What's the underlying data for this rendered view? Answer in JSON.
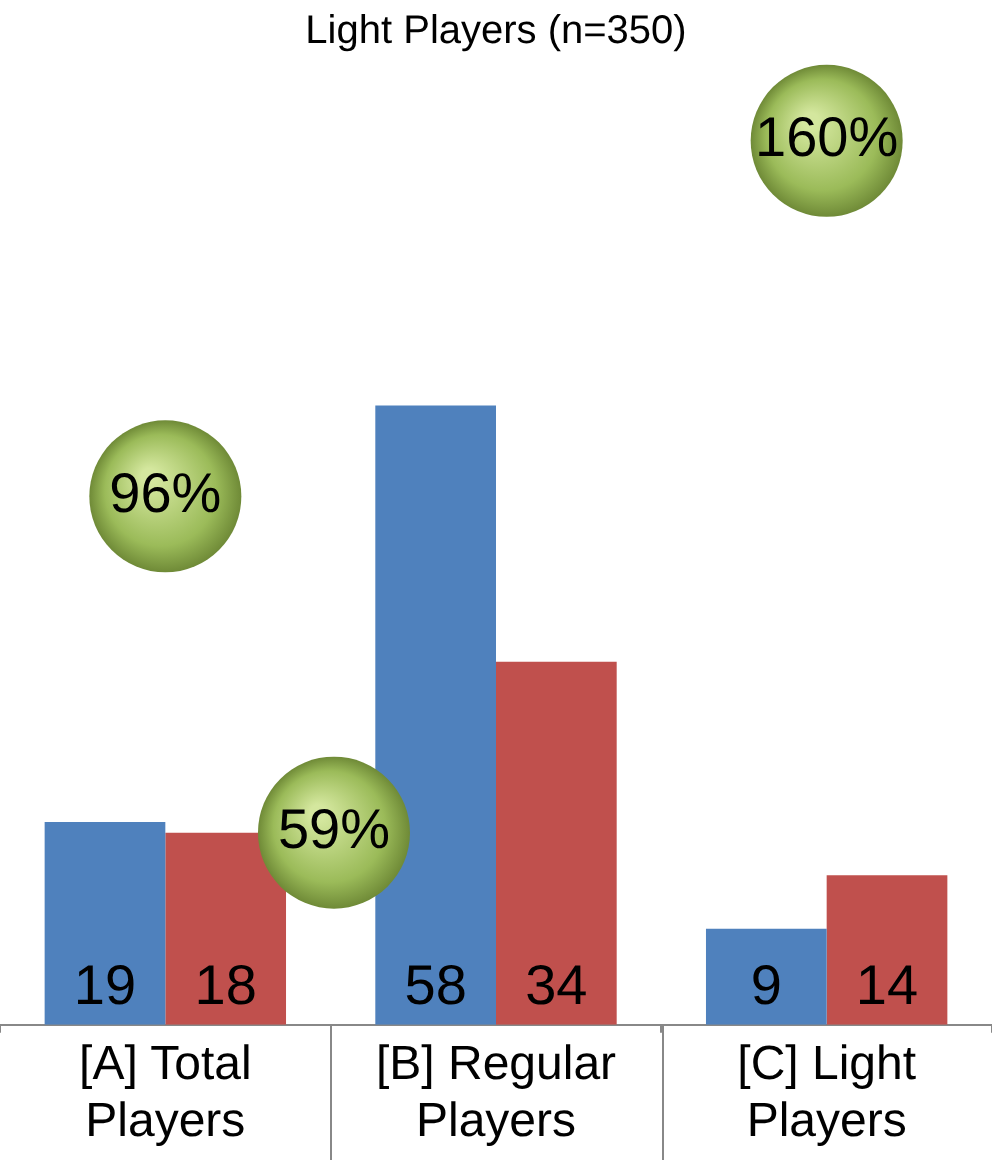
{
  "chart_data": {
    "type": "bar",
    "title": "Light Players (n=350)",
    "categories": [
      "[A] Total Players",
      "[B] Regular Players",
      "[C] Light Players"
    ],
    "series": [
      {
        "color": "#4f81bd",
        "values": [
          19,
          58,
          9
        ]
      },
      {
        "color": "#c0504d",
        "values": [
          18,
          34,
          14
        ]
      }
    ],
    "data_labels": true,
    "grid": false,
    "legend": false,
    "tick_labels": "x",
    "annotations": [
      "96%",
      "59%",
      "160%"
    ]
  }
}
